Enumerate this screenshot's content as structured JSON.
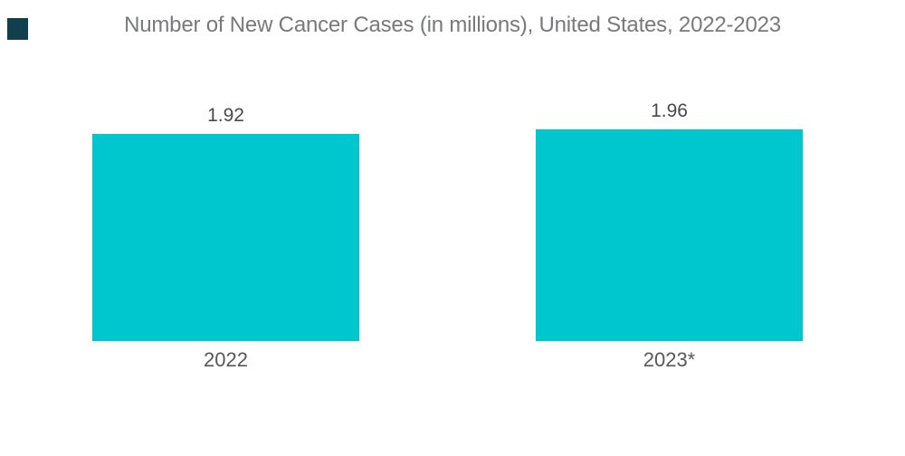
{
  "page": {
    "background": "#FFFFFF"
  },
  "brand": {
    "logo_color": "#123F4D"
  },
  "chart_data": {
    "type": "bar",
    "title": "Number of New Cancer Cases (in millions), United States, 2022-2023",
    "categories": [
      "2022",
      "2023*"
    ],
    "values": [
      1.92,
      1.96
    ],
    "value_labels": [
      "1.92",
      "1.96"
    ],
    "xlabel": "",
    "ylabel": "",
    "ylim": [
      0,
      2.1
    ],
    "grid": false,
    "legend": false,
    "bar_color": "#00C7CE",
    "title_color": "#77797B",
    "value_label_color": "#464A4D",
    "category_label_color": "#55585B"
  }
}
